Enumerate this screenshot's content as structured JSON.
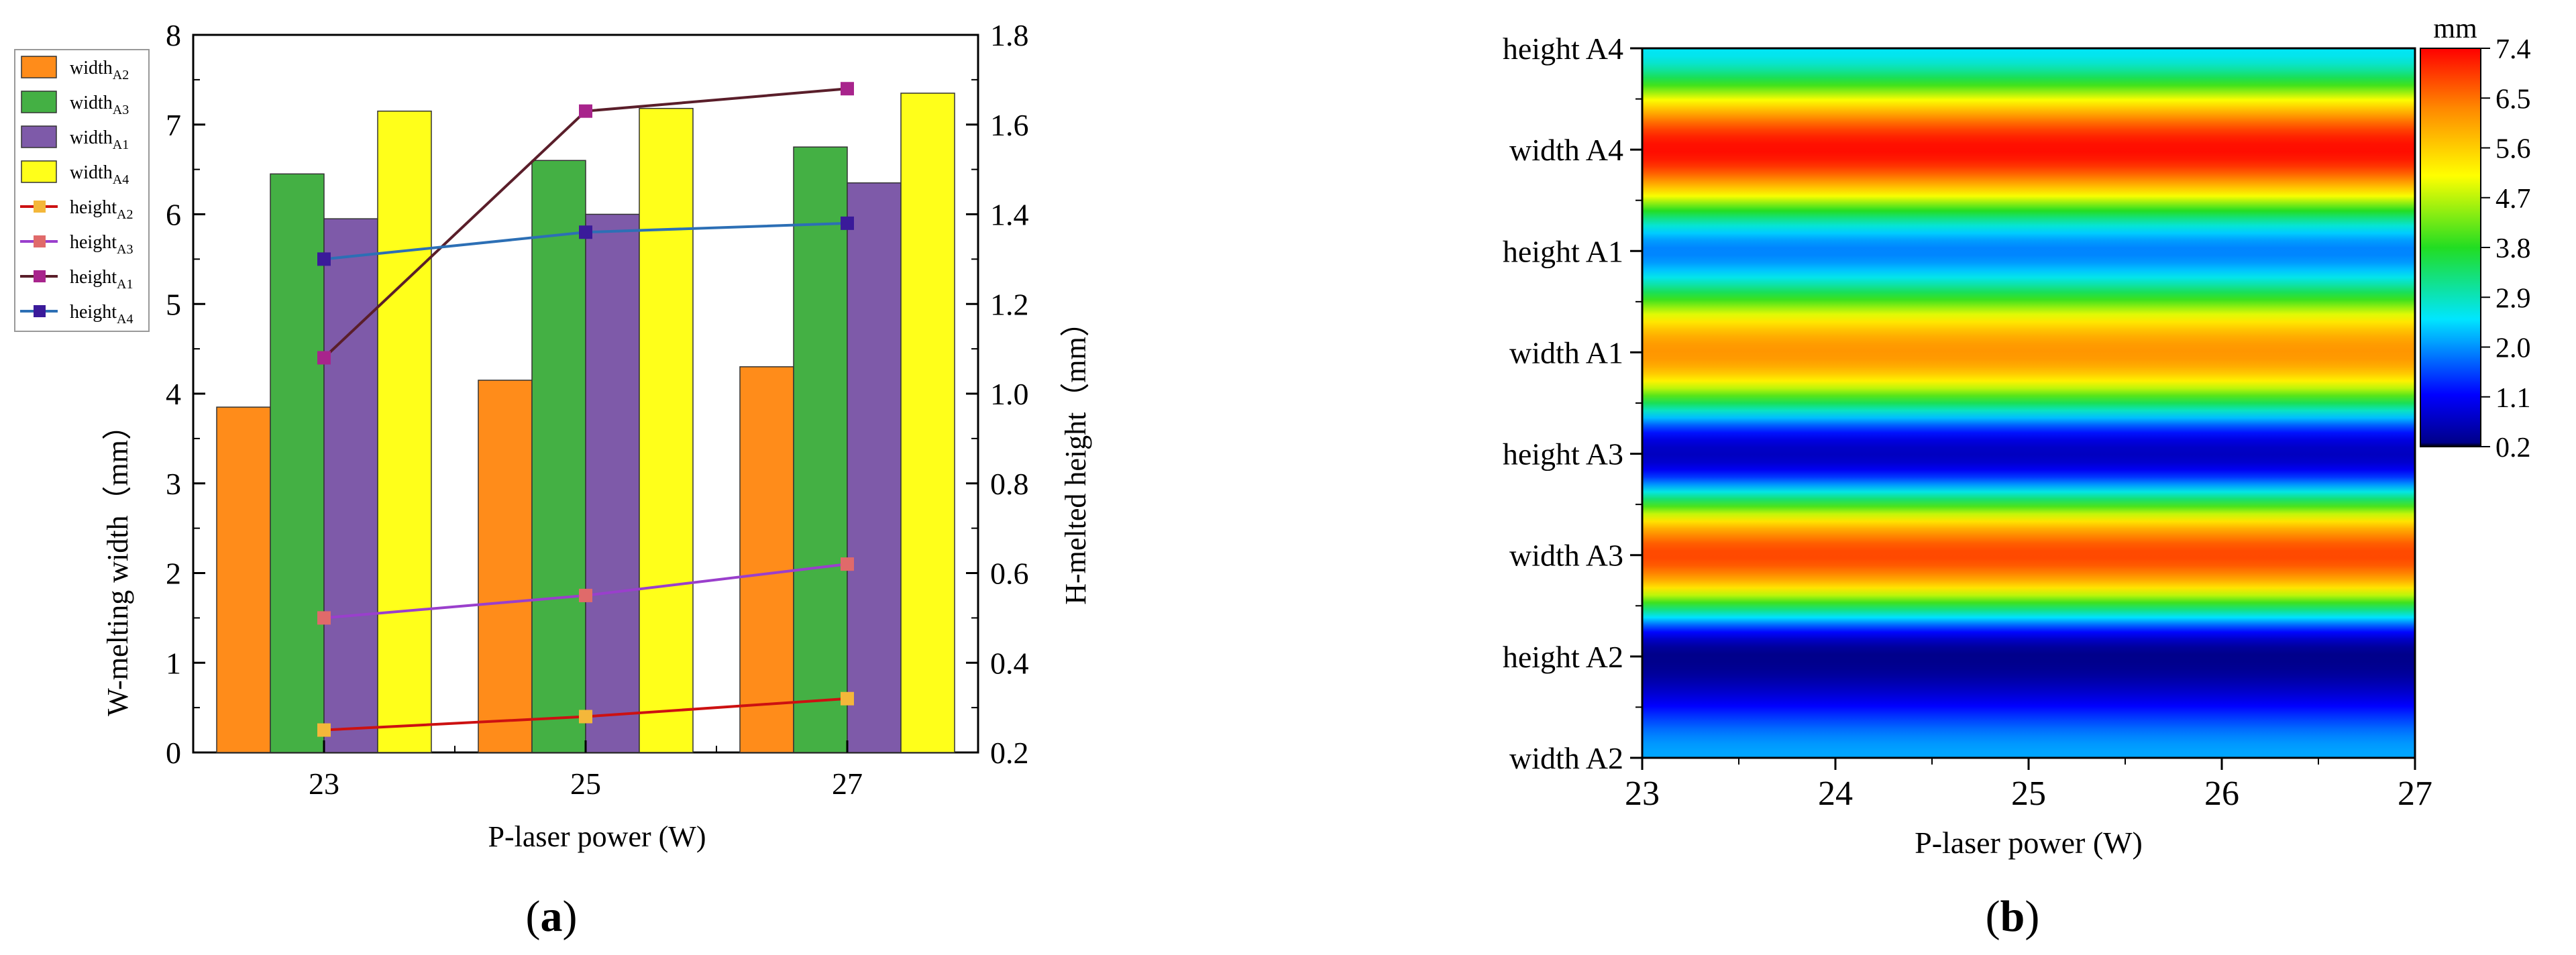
{
  "colors": {
    "widthA2": "#ff8c1a",
    "widthA3": "#44b044",
    "widthA1": "#7e5aa9",
    "widthA4": "#ffff1a",
    "heightA2": "#cc1111",
    "heightA3": "#9a3fcc",
    "heightA1": "#5a1e2a",
    "heightA4": "#2c6fb5",
    "markerA2": "#f4b73a",
    "markerA3": "#e06a6a",
    "markerA1": "#a8248c",
    "markerA4": "#3a1a9a"
  },
  "chart_data": [
    {
      "panel_label": "a",
      "type": "bar+line",
      "xlabel": "P-laser power (W)",
      "ylabel": "W-melting width（mm）",
      "y2label": "H-melted height（mm）",
      "categories": [
        "23",
        "25",
        "27"
      ],
      "ylim": [
        0,
        8
      ],
      "y2lim": [
        0.2,
        1.8
      ],
      "yticks": [
        "0",
        "1",
        "2",
        "3",
        "4",
        "5",
        "6",
        "7",
        "8"
      ],
      "y2ticks": [
        "0.2",
        "0.4",
        "0.6",
        "0.8",
        "1.0",
        "1.2",
        "1.4",
        "1.6",
        "1.8"
      ],
      "bar_series": [
        {
          "key": "widthA2",
          "name": "width",
          "sub": "A2",
          "values": [
            3.85,
            4.15,
            4.3
          ]
        },
        {
          "key": "widthA3",
          "name": "width",
          "sub": "A3",
          "values": [
            6.45,
            6.6,
            6.75
          ]
        },
        {
          "key": "widthA1",
          "name": "width",
          "sub": "A1",
          "values": [
            5.95,
            6.0,
            6.35
          ]
        },
        {
          "key": "widthA4",
          "name": "width",
          "sub": "A4",
          "values": [
            7.15,
            7.18,
            7.35
          ]
        }
      ],
      "line_series": [
        {
          "key": "heightA2",
          "marker": "markerA2",
          "name": "height",
          "sub": "A2",
          "values": [
            0.25,
            0.28,
            0.32
          ]
        },
        {
          "key": "heightA3",
          "marker": "markerA3",
          "name": "height",
          "sub": "A3",
          "values": [
            0.5,
            0.55,
            0.62
          ]
        },
        {
          "key": "heightA1",
          "marker": "markerA1",
          "name": "height",
          "sub": "A1",
          "values": [
            1.08,
            1.63,
            1.68
          ]
        },
        {
          "key": "heightA4",
          "marker": "markerA4",
          "name": "height",
          "sub": "A4",
          "values": [
            1.3,
            1.36,
            1.38
          ]
        }
      ],
      "legend_position": "top-left"
    },
    {
      "panel_label": "b",
      "type": "heatmap",
      "xlabel": "P-laser power (W)",
      "xticks": [
        "23",
        "24",
        "25",
        "26",
        "27"
      ],
      "xlim": [
        23,
        27
      ],
      "yticks_bottom_to_top": [
        "width A2",
        "height A2",
        "width A3",
        "height A3",
        "width A1",
        "height A1",
        "width A4",
        "height A4"
      ],
      "row_values_bottom_to_top": [
        2.0,
        0.2,
        6.8,
        0.6,
        6.1,
        1.8,
        7.3,
        2.4
      ],
      "colorbar": {
        "title": "mm",
        "ticks": [
          "0.2",
          "1.1",
          "2.0",
          "2.9",
          "3.8",
          "4.7",
          "5.6",
          "6.5",
          "7.4"
        ],
        "range": [
          0.2,
          7.4
        ]
      }
    }
  ]
}
